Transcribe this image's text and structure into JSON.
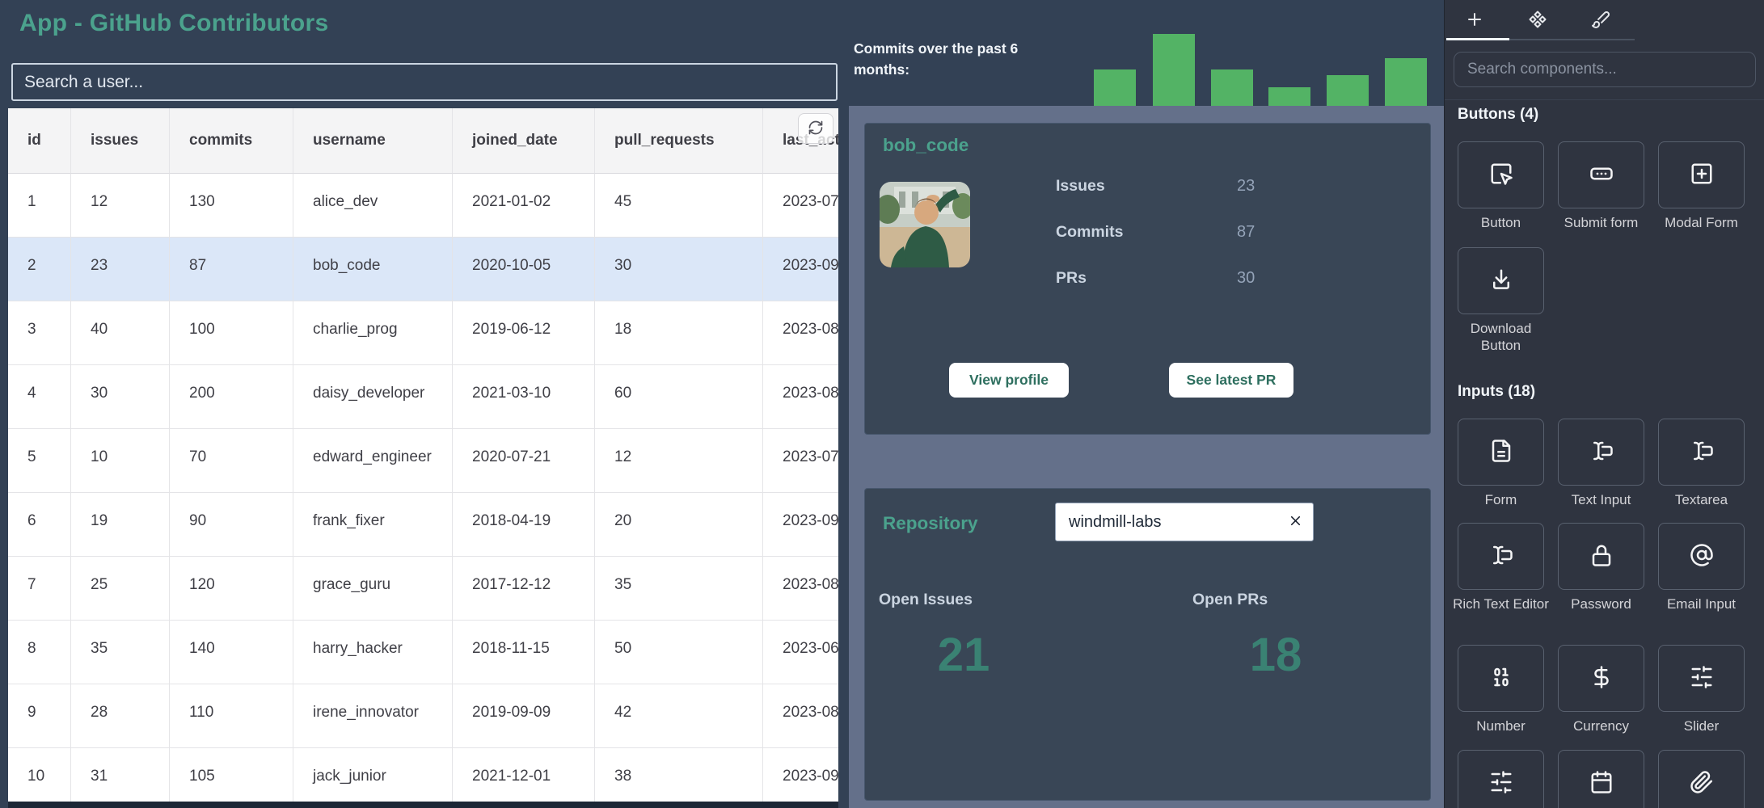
{
  "app": {
    "title": "App - GitHub Contributors"
  },
  "colors": {
    "accent_teal": "#4BA28D",
    "teal_dark": "#3A8273",
    "button_text_teal": "#2E6F5F",
    "bar_green": "#53B365",
    "selected_row_blue": "#DBE7F8",
    "canvas_dark": "#334155",
    "section_slate": "#64708A",
    "card_dark": "#394656",
    "panel_dark": "#2F3440"
  },
  "left": {
    "search_placeholder": "Search a user...",
    "table": {
      "columns": [
        "id",
        "issues",
        "commits",
        "username",
        "joined_date",
        "pull_requests",
        "last_active"
      ],
      "selected_row_index": 1,
      "rows": [
        [
          "1",
          "12",
          "130",
          "alice_dev",
          "2021-01-02",
          "45",
          "2023-07"
        ],
        [
          "2",
          "23",
          "87",
          "bob_code",
          "2020-10-05",
          "30",
          "2023-09"
        ],
        [
          "3",
          "40",
          "100",
          "charlie_prog",
          "2019-06-12",
          "18",
          "2023-08"
        ],
        [
          "4",
          "30",
          "200",
          "daisy_developer",
          "2021-03-10",
          "60",
          "2023-08"
        ],
        [
          "5",
          "10",
          "70",
          "edward_engineer",
          "2020-07-21",
          "12",
          "2023-07"
        ],
        [
          "6",
          "19",
          "90",
          "frank_fixer",
          "2018-04-19",
          "20",
          "2023-09"
        ],
        [
          "7",
          "25",
          "120",
          "grace_guru",
          "2017-12-12",
          "35",
          "2023-08"
        ],
        [
          "8",
          "35",
          "140",
          "harry_hacker",
          "2018-11-15",
          "50",
          "2023-06"
        ],
        [
          "9",
          "28",
          "110",
          "irene_innovator",
          "2019-09-09",
          "42",
          "2023-08"
        ],
        [
          "10",
          "31",
          "105",
          "jack_junior",
          "2021-12-01",
          "38",
          "2023-09"
        ]
      ]
    }
  },
  "chart_data": {
    "type": "bar",
    "title": "Commits over the past 6 months:",
    "categories": [
      "",
      "",
      "",
      "",
      "",
      ""
    ],
    "values": [
      45,
      89,
      45,
      23,
      38,
      59
    ],
    "xlabel": "",
    "ylabel": "",
    "axes_hidden": true,
    "bar_color": "#53B365"
  },
  "middle": {
    "user_card": {
      "title": "bob_code",
      "stats": [
        {
          "label": "Issues",
          "value": "23"
        },
        {
          "label": "Commits",
          "value": "87"
        },
        {
          "label": "PRs",
          "value": "30"
        }
      ],
      "buttons": [
        "View profile",
        "See latest PR"
      ]
    },
    "repo_card": {
      "title": "Repository",
      "input_value": "windmill-labs",
      "metrics": [
        {
          "label": "Open Issues",
          "value": "21"
        },
        {
          "label": "Open PRs",
          "value": "18"
        }
      ]
    }
  },
  "right_panel": {
    "search_placeholder": "Search components...",
    "tabs": [
      {
        "name": "insert",
        "icon": "plus-icon"
      },
      {
        "name": "components",
        "icon": "shapes-icon"
      },
      {
        "name": "styling",
        "icon": "brush-icon"
      }
    ],
    "sections": [
      {
        "heading": "Buttons (4)",
        "items": [
          {
            "label": "Button",
            "icon": "square-mouse-pointer-icon"
          },
          {
            "label": "Submit form",
            "icon": "ellipsis-box-icon"
          },
          {
            "label": "Modal Form",
            "icon": "plus-square-icon"
          },
          {
            "label": "Download Button",
            "icon": "download-icon"
          }
        ]
      },
      {
        "heading": "Inputs (18)",
        "items": [
          {
            "label": "Form",
            "icon": "file-text-icon"
          },
          {
            "label": "Text Input",
            "icon": "text-cursor-input-icon"
          },
          {
            "label": "Textarea",
            "icon": "text-cursor-input-icon"
          },
          {
            "label": "Rich Text Editor",
            "icon": "text-cursor-input-icon"
          },
          {
            "label": "Password",
            "icon": "lock-icon"
          },
          {
            "label": "Email Input",
            "icon": "at-sign-icon"
          },
          {
            "label": "Number",
            "icon": "binary-icon"
          },
          {
            "label": "Currency",
            "icon": "dollar-icon"
          },
          {
            "label": "Slider",
            "icon": "sliders-icon"
          },
          {
            "label": "",
            "icon": "sliders-icon"
          },
          {
            "label": "",
            "icon": "calendar-icon"
          },
          {
            "label": "",
            "icon": "paperclip-icon"
          }
        ]
      }
    ]
  }
}
